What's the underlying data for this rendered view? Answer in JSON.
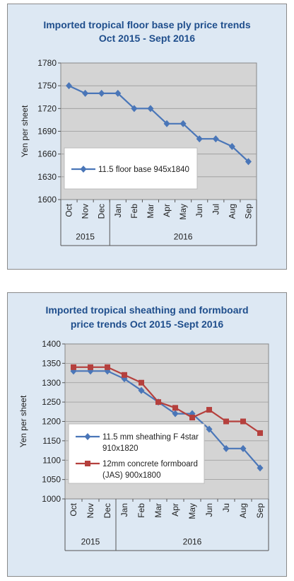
{
  "colors": {
    "panel_bg": "#dde8f3",
    "plot_bg": "#d4d4d4",
    "title": "#1f4e8c",
    "blue_series": "#4a76b8",
    "red_series": "#b5403d",
    "grid": "#9a9a9a"
  },
  "chart_data": [
    {
      "type": "line",
      "title_line1": "Imported tropical floor base ply price trends",
      "title_line2": "Oct 2015 - Sept 2016",
      "ylabel": "Yen per sheet",
      "ylim": [
        1600,
        1780
      ],
      "yticks": [
        "1780",
        "1750",
        "1720",
        "1690",
        "1660",
        "1630",
        "1600"
      ],
      "categories": [
        "Oct",
        "Nov",
        "Dec",
        "Jan",
        "Feb",
        "Mar",
        "Apr",
        "May",
        "Jun",
        "Jul",
        "Aug",
        "Sep"
      ],
      "year_groups": [
        {
          "label": "2015",
          "months": 3
        },
        {
          "label": "2016",
          "months": 9
        }
      ],
      "grid": true,
      "legend_position": "lower-left",
      "series": [
        {
          "name": "11.5 floor base 945x1840",
          "color": "#4a76b8",
          "marker": "diamond",
          "values": [
            1750,
            1740,
            1740,
            1740,
            1720,
            1720,
            1700,
            1700,
            1680,
            1680,
            1670,
            1650
          ]
        }
      ]
    },
    {
      "type": "line",
      "title_line1": "Imported tropical sheathing and formboard",
      "title_line2": "price trends Oct 2015 -Sept 2016",
      "ylabel": "Yen per sheet",
      "ylim": [
        1000,
        1400
      ],
      "yticks": [
        "1400",
        "1350",
        "1300",
        "1250",
        "1200",
        "1150",
        "1100",
        "1050",
        "1000"
      ],
      "categories": [
        "Oct",
        "Nov",
        "Dec",
        "Jan",
        "Feb",
        "Mar",
        "Apr",
        "May",
        "Jun",
        "Ju",
        "Aug",
        "Sep"
      ],
      "year_groups": [
        {
          "label": "2015",
          "months": 3
        },
        {
          "label": "2016",
          "months": 9
        }
      ],
      "grid": true,
      "legend_position": "lower-left",
      "series": [
        {
          "name_line1": "11.5 mm sheathing F 4star",
          "name_line2": "910x1820",
          "color": "#4a76b8",
          "marker": "diamond",
          "values": [
            1330,
            1330,
            1330,
            1310,
            1280,
            1250,
            1220,
            1220,
            1180,
            1130,
            1130,
            1080
          ]
        },
        {
          "name_line1": "12mm concrete formboard",
          "name_line2": "(JAS) 900x1800",
          "color": "#b5403d",
          "marker": "square",
          "values": [
            1340,
            1340,
            1340,
            1320,
            1300,
            1250,
            1235,
            1210,
            1230,
            1200,
            1200,
            1170
          ]
        }
      ]
    }
  ]
}
